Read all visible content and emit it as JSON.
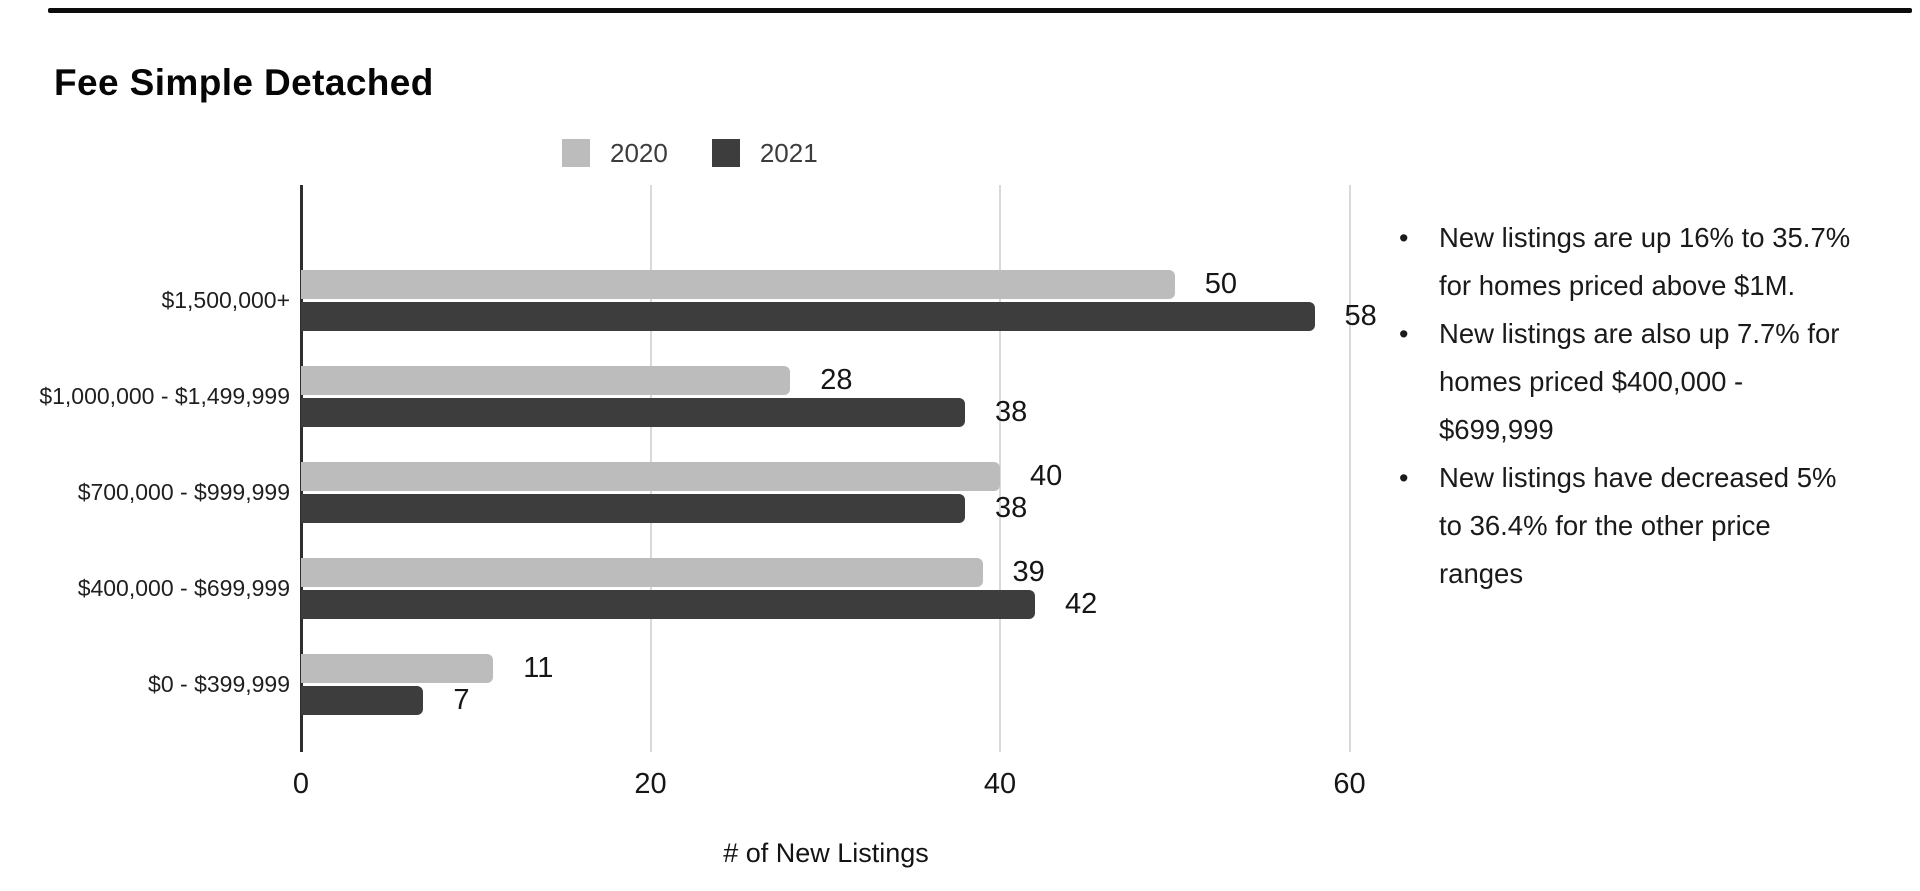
{
  "title": "Fee Simple Detached",
  "chart_data": {
    "type": "bar",
    "orientation": "horizontal",
    "title": "Fee Simple Detached",
    "categories": [
      "$1,500,000+",
      "$1,000,000 - $1,499,999",
      "$700,000 - $999,999",
      "$400,000 - $699,999",
      "$0 - $399,999"
    ],
    "series": [
      {
        "name": "2020",
        "color": "#bcbcbc",
        "values": [
          50,
          28,
          40,
          39,
          11
        ]
      },
      {
        "name": "2021",
        "color": "#3d3d3d",
        "values": [
          58,
          38,
          38,
          42,
          7
        ]
      }
    ],
    "xlabel": "# of New Listings",
    "ylabel": "",
    "x_ticks": [
      0,
      20,
      40,
      60
    ],
    "xlim": [
      0,
      62.5
    ],
    "grid": true,
    "legend_position": "top-center",
    "value_labels": true
  },
  "notes": [
    "New listings are up 16% to 35.7%\nfor homes priced above $1M.",
    "New listings are also up 7.7% for\nhomes priced $400,000 -\n$699,999",
    "New listings have decreased 5%\nto 36.4% for the other price\nranges"
  ],
  "colors": {
    "series_2020": "#bcbcbc",
    "series_2021": "#3d3d3d",
    "gridline": "#d9d9d9",
    "axis_line": "#2e2e2e",
    "text": "#1a1a1a",
    "top_rule": "#0c0c0c"
  }
}
